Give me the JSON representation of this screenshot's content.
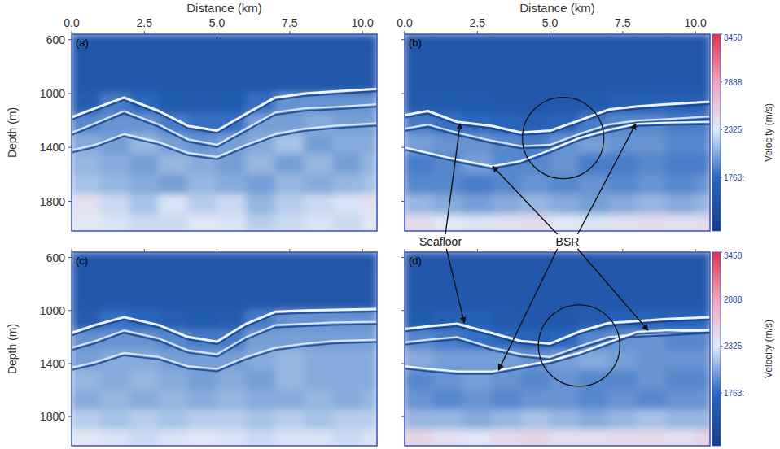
{
  "chart_data": [
    {
      "type": "heatmap",
      "title": "(a)",
      "tick_labels": true,
      "xlabel": "Distance (km)",
      "ylabel": "Depth (m)",
      "xlim": [
        0,
        10.5
      ],
      "xticks": [
        {
          "value": 0,
          "label": "0.0"
        },
        {
          "value": 2.5,
          "label": "2.5"
        },
        {
          "value": 5,
          "label": "5.0"
        },
        {
          "value": 7.5,
          "label": "7.5"
        },
        {
          "value": 10,
          "label": "10.0"
        }
      ],
      "ylim": [
        560,
        2020
      ],
      "yticks": [
        600,
        1000,
        1400,
        1800
      ],
      "x_edges": [
        0,
        1,
        2,
        3,
        4,
        5,
        6,
        7,
        8,
        9,
        10,
        10.5
      ],
      "y_edges": [
        560,
        700,
        850,
        1000,
        1150,
        1300,
        1450,
        1600,
        1750,
        1900,
        2020
      ],
      "cells": [
        [
          1520,
          1520,
          1520,
          1520,
          1520,
          1520,
          1520,
          1520,
          1520,
          1520,
          1520
        ],
        [
          1530,
          1530,
          1530,
          1530,
          1530,
          1530,
          1530,
          1530,
          1530,
          1530,
          1530
        ],
        [
          1550,
          1550,
          1550,
          1550,
          1550,
          1550,
          1550,
          1550,
          1550,
          1550,
          1550
        ],
        [
          1600,
          1850,
          1750,
          1580,
          1560,
          1580,
          1800,
          1950,
          1950,
          1950,
          1950
        ],
        [
          1900,
          1950,
          1950,
          1850,
          1800,
          1800,
          2000,
          2000,
          2050,
          2000,
          2000
        ],
        [
          2050,
          2000,
          2100,
          2000,
          1950,
          2000,
          2050,
          2150,
          2000,
          2050,
          2050
        ],
        [
          2100,
          2050,
          2000,
          2100,
          2050,
          2000,
          2100,
          2000,
          2100,
          2000,
          2100
        ],
        [
          2150,
          2100,
          2050,
          2000,
          2100,
          2050,
          2000,
          2100,
          2050,
          2100,
          2150
        ],
        [
          2400,
          2250,
          2150,
          2300,
          2200,
          2250,
          2100,
          2200,
          2250,
          2300,
          2400
        ],
        [
          2350,
          2300,
          2250,
          2250,
          2350,
          2300,
          2200,
          2250,
          2300,
          2250,
          2350
        ]
      ],
      "x": [
        0,
        0.8,
        1.8,
        3,
        4,
        5,
        6,
        7,
        8,
        9,
        10.5
      ],
      "series": [
        {
          "type": "line",
          "color": "#ffffff",
          "values": [
            1176,
            1110,
            1030,
            1130,
            1240,
            1275,
            1150,
            1030,
            1000,
            985,
            965
          ]
        },
        {
          "type": "line",
          "color": "#dfeaf8",
          "values": [
            1290,
            1220,
            1130,
            1230,
            1340,
            1380,
            1260,
            1140,
            1110,
            1100,
            1080
          ]
        },
        {
          "type": "line",
          "color": "#dfeaf8",
          "values": [
            1420,
            1380,
            1300,
            1360,
            1440,
            1470,
            1380,
            1300,
            1260,
            1240,
            1220
          ]
        }
      ]
    },
    {
      "type": "heatmap",
      "title": "(b)",
      "tick_labels": "x",
      "xlabel": "Distance (km)",
      "xlim": [
        0,
        10.5
      ],
      "xticks": [
        {
          "value": 0,
          "label": "0.0"
        },
        {
          "value": 2.5,
          "label": "2.5"
        },
        {
          "value": 5,
          "label": "5.0"
        },
        {
          "value": 7.5,
          "label": "7.5"
        },
        {
          "value": 10,
          "label": "10.0"
        }
      ],
      "ylim": [
        560,
        2020
      ],
      "yticks": [
        600,
        1000,
        1400,
        1800
      ],
      "x_edges": [
        0,
        1,
        2,
        3,
        4,
        5,
        6,
        7,
        8,
        9,
        10,
        10.5
      ],
      "y_edges": [
        560,
        700,
        850,
        1000,
        1150,
        1300,
        1450,
        1600,
        1750,
        1900,
        2020
      ],
      "cells": [
        [
          1520,
          1520,
          1520,
          1520,
          1520,
          1520,
          1520,
          1520,
          1520,
          1520,
          1520
        ],
        [
          1530,
          1530,
          1530,
          1530,
          1530,
          1530,
          1530,
          1530,
          1530,
          1530,
          1530
        ],
        [
          1550,
          1550,
          1550,
          1550,
          1550,
          1550,
          1550,
          1550,
          1550,
          1550,
          1550
        ],
        [
          1560,
          1580,
          1560,
          1550,
          1550,
          1550,
          1580,
          1620,
          1650,
          1650,
          1650
        ],
        [
          1850,
          1800,
          1750,
          1700,
          1650,
          1700,
          1850,
          1900,
          1900,
          1850,
          1850
        ],
        [
          2000,
          1950,
          1950,
          1900,
          1850,
          1950,
          2000,
          1950,
          1950,
          1900,
          1900
        ],
        [
          1850,
          1900,
          2000,
          1900,
          1900,
          1950,
          1850,
          1850,
          1900,
          1850,
          1850
        ],
        [
          1900,
          1900,
          1850,
          1900,
          1950,
          1900,
          1950,
          1900,
          1950,
          1900,
          1950
        ],
        [
          2100,
          2050,
          2000,
          2050,
          2100,
          2050,
          2000,
          2050,
          2100,
          2050,
          2100
        ],
        [
          2450,
          2350,
          2300,
          2400,
          2450,
          2350,
          2300,
          2400,
          2450,
          2400,
          2450
        ]
      ],
      "x": [
        0,
        0.8,
        1.8,
        3,
        4,
        5,
        6,
        7,
        8,
        9,
        10.5
      ],
      "series": [
        {
          "type": "line",
          "color": "#ffffff",
          "values": [
            1160,
            1130,
            1210,
            1240,
            1290,
            1275,
            1200,
            1120,
            1095,
            1080,
            1060
          ]
        },
        {
          "type": "line",
          "color": "#dfeaf8",
          "values": [
            1260,
            1230,
            1290,
            1350,
            1390,
            1380,
            1300,
            1230,
            1200,
            1190,
            1170
          ]
        },
        {
          "type": "line",
          "color": "#ffffff",
          "values": [
            1400,
            1440,
            1490,
            1540,
            1500,
            1420,
            1330,
            1270,
            1224,
            1215,
            1210
          ]
        }
      ],
      "circle": {
        "x": 5.45,
        "y": 1330
      },
      "colorbar": {
        "range": [
          1130,
          3450
        ],
        "ticks": [
          3450,
          2888,
          2325,
          {
            "value": 1763,
            "label": "1763:"
          }
        ],
        "label": "Velocity (m/s)"
      }
    },
    {
      "type": "heatmap",
      "title": "(c)",
      "tick_labels": "y",
      "ylabel": "Depth (m)",
      "xlim": [
        0,
        10.5
      ],
      "xticks": [
        0,
        2.5,
        5,
        7.5,
        10
      ],
      "ylim": [
        560,
        2020
      ],
      "yticks": [
        600,
        1000,
        1400,
        1800
      ],
      "x_edges": [
        0,
        1,
        2,
        3,
        4,
        5,
        6,
        7,
        8,
        9,
        10,
        10.5
      ],
      "y_edges": [
        560,
        700,
        850,
        1000,
        1150,
        1300,
        1450,
        1600,
        1750,
        1900,
        2020
      ],
      "cells": [
        [
          1520,
          1520,
          1520,
          1520,
          1520,
          1520,
          1520,
          1520,
          1520,
          1520,
          1520
        ],
        [
          1530,
          1530,
          1530,
          1530,
          1530,
          1530,
          1530,
          1530,
          1530,
          1530,
          1530
        ],
        [
          1550,
          1550,
          1550,
          1550,
          1550,
          1550,
          1550,
          1550,
          1550,
          1550,
          1550
        ],
        [
          1600,
          1800,
          1750,
          1620,
          1580,
          1600,
          1850,
          1950,
          1950,
          1950,
          1950
        ],
        [
          1950,
          1950,
          1950,
          1900,
          1850,
          1850,
          2000,
          2000,
          2000,
          2000,
          2000
        ],
        [
          2000,
          2050,
          2050,
          2000,
          2000,
          2000,
          2050,
          2100,
          2050,
          2050,
          2050
        ],
        [
          2100,
          2050,
          2100,
          2050,
          2000,
          2050,
          2000,
          2100,
          2050,
          2050,
          2050
        ],
        [
          2050,
          2100,
          2050,
          2100,
          2050,
          2100,
          2050,
          2050,
          2100,
          2050,
          2100
        ],
        [
          2200,
          2150,
          2200,
          2150,
          2200,
          2200,
          2150,
          2200,
          2150,
          2200,
          2200
        ],
        [
          2350,
          2300,
          2250,
          2300,
          2350,
          2300,
          2250,
          2300,
          2300,
          2250,
          2300
        ]
      ],
      "x": [
        0,
        0.8,
        1.8,
        3,
        4,
        5,
        6,
        7,
        8,
        9,
        10.5
      ],
      "series": [
        {
          "type": "line",
          "color": "#ffffff",
          "values": [
            1170,
            1110,
            1050,
            1110,
            1200,
            1235,
            1100,
            1010,
            1000,
            995,
            990
          ]
        },
        {
          "type": "line",
          "color": "#dfeaf8",
          "values": [
            1280,
            1230,
            1150,
            1210,
            1300,
            1330,
            1200,
            1110,
            1100,
            1090,
            1085
          ]
        },
        {
          "type": "line",
          "color": "#dfeaf8",
          "values": [
            1430,
            1390,
            1320,
            1350,
            1420,
            1440,
            1350,
            1280,
            1250,
            1230,
            1220
          ]
        }
      ]
    },
    {
      "type": "heatmap",
      "title": "(d)",
      "tick_labels": false,
      "xlim": [
        0,
        10.5
      ],
      "xticks": [
        0,
        2.5,
        5,
        7.5,
        10
      ],
      "ylim": [
        560,
        2020
      ],
      "yticks": [
        600,
        1000,
        1400,
        1800
      ],
      "x_edges": [
        0,
        1,
        2,
        3,
        4,
        5,
        6,
        7,
        8,
        9,
        10,
        10.5
      ],
      "y_edges": [
        560,
        700,
        850,
        1000,
        1150,
        1300,
        1450,
        1600,
        1750,
        1900,
        2020
      ],
      "cells": [
        [
          1520,
          1520,
          1520,
          1520,
          1520,
          1520,
          1520,
          1520,
          1520,
          1520,
          1520
        ],
        [
          1530,
          1530,
          1530,
          1530,
          1530,
          1530,
          1530,
          1530,
          1530,
          1530,
          1530
        ],
        [
          1550,
          1550,
          1550,
          1550,
          1550,
          1550,
          1550,
          1550,
          1550,
          1550,
          1550
        ],
        [
          1580,
          1650,
          1650,
          1560,
          1550,
          1550,
          1600,
          1650,
          1700,
          1700,
          1700
        ],
        [
          1900,
          1850,
          1800,
          1750,
          1700,
          1750,
          1900,
          1950,
          1950,
          1900,
          1900
        ],
        [
          2050,
          2000,
          2000,
          2000,
          1950,
          2000,
          2050,
          2000,
          1950,
          1950,
          1950
        ],
        [
          1900,
          1950,
          2000,
          1950,
          1900,
          1950,
          1900,
          1900,
          1950,
          1900,
          1900
        ],
        [
          1950,
          1900,
          1950,
          1900,
          1950,
          1950,
          1900,
          1950,
          1900,
          1950,
          1950
        ],
        [
          2100,
          2100,
          2050,
          2100,
          2150,
          2100,
          2050,
          2100,
          2150,
          2100,
          2100
        ],
        [
          2500,
          2400,
          2350,
          2450,
          2500,
          2400,
          2400,
          2450,
          2450,
          2400,
          2500
        ]
      ],
      "x": [
        0,
        0.8,
        1.8,
        3,
        4,
        5,
        6,
        7,
        8,
        9,
        10.5
      ],
      "series": [
        {
          "type": "line",
          "color": "#ffffff",
          "values": [
            1140,
            1120,
            1100,
            1170,
            1230,
            1250,
            1160,
            1095,
            1080,
            1065,
            1050
          ]
        },
        {
          "type": "line",
          "color": "#dfeaf8",
          "values": [
            1240,
            1220,
            1200,
            1280,
            1330,
            1350,
            1270,
            1200,
            1180,
            1170,
            1150
          ]
        },
        {
          "type": "line",
          "color": "#ffffff",
          "values": [
            1420,
            1440,
            1460,
            1460,
            1420,
            1380,
            1320,
            1240,
            1160,
            1150,
            1150
          ]
        }
      ],
      "circle": {
        "x": 6.0,
        "y": 1265
      },
      "colorbar": {
        "range": [
          1130,
          3450
        ],
        "ticks": [
          3450,
          2888,
          2325,
          {
            "value": 1763,
            "label": "1763:"
          }
        ],
        "label": "Velocity (m/s)"
      }
    }
  ],
  "annotations": [
    {
      "text": "Seafloor",
      "targets": [
        {
          "panel": 1,
          "x": 1.91,
          "y": 1224
        },
        {
          "panel": 3,
          "x": 2.05,
          "y": 1093
        }
      ]
    },
    {
      "text": "BSR",
      "targets": [
        {
          "panel": 1,
          "x": 3.03,
          "y": 1540
        },
        {
          "panel": 1,
          "x": 7.95,
          "y": 1224
        },
        {
          "panel": 3,
          "x": 3.23,
          "y": 1450
        },
        {
          "panel": 3,
          "x": 8.37,
          "y": 1149
        }
      ]
    }
  ]
}
